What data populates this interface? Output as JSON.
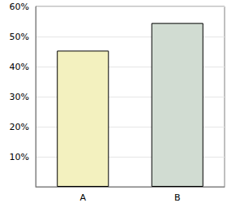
{
  "chart_data": {
    "type": "bar",
    "categories": [
      "A",
      "B"
    ],
    "values": [
      45.3,
      54.5
    ],
    "colors": [
      "#f3f1bf",
      "#d1dcd2"
    ],
    "ylim": [
      0,
      60
    ],
    "yticks": [
      {
        "value": 10,
        "label": "10%"
      },
      {
        "value": 20,
        "label": "20%"
      },
      {
        "value": 30,
        "label": "30%"
      },
      {
        "value": 40,
        "label": "40%"
      },
      {
        "value": 50,
        "label": "50%"
      },
      {
        "value": 60,
        "label": "60%"
      }
    ],
    "grid": true
  }
}
